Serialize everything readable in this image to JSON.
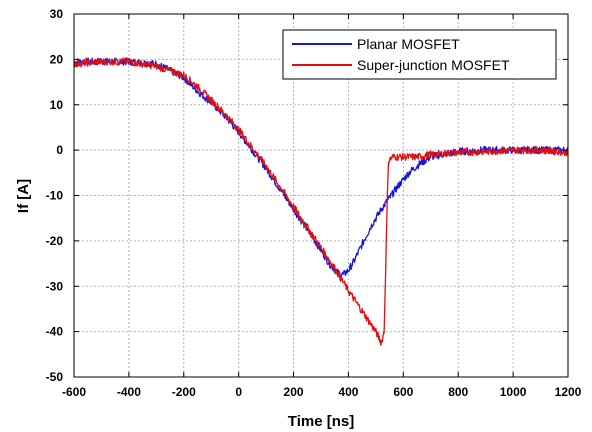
{
  "chart_data": {
    "type": "line",
    "xlabel": "Time [ns]",
    "ylabel": "If [A]",
    "xlim": [
      -600,
      1200
    ],
    "ylim": [
      -50,
      30
    ],
    "xticks": [
      -600,
      -400,
      -200,
      0,
      200,
      400,
      600,
      800,
      1000,
      1200
    ],
    "yticks": [
      -50,
      -40,
      -30,
      -20,
      -10,
      0,
      10,
      20,
      30
    ],
    "grid": true,
    "legend": "top-right",
    "series": [
      {
        "name": "Planar MOSFET",
        "color": "#1515e0",
        "x": [
          -600,
          -500,
          -400,
          -300,
          -200,
          -150,
          -100,
          -50,
          0,
          50,
          100,
          150,
          200,
          250,
          300,
          330,
          360,
          380,
          400,
          420,
          440,
          460,
          480,
          500,
          520,
          550,
          580,
          620,
          660,
          700,
          800,
          900,
          1000,
          1100,
          1200
        ],
        "y": [
          19.5,
          19.5,
          19.5,
          19,
          16,
          13,
          10.5,
          7.5,
          4,
          0,
          -4,
          -8.5,
          -13,
          -17.5,
          -22,
          -25,
          -27,
          -27.5,
          -26.5,
          -24.5,
          -22,
          -19.5,
          -17,
          -15,
          -13,
          -10.5,
          -8,
          -5,
          -3,
          -1.5,
          -0.3,
          0,
          0,
          0,
          0
        ]
      },
      {
        "name": "Super-junction MOSFET",
        "color": "#e01010",
        "x": [
          -600,
          -500,
          -400,
          -300,
          -200,
          -150,
          -100,
          -50,
          0,
          50,
          100,
          150,
          200,
          250,
          300,
          350,
          400,
          450,
          500,
          520,
          530,
          545,
          560,
          600,
          650,
          700,
          800,
          900,
          1000,
          1100,
          1200
        ],
        "y": [
          19,
          19.5,
          19.5,
          18.5,
          16.5,
          14,
          11,
          8,
          4.5,
          0.5,
          -3.5,
          -8,
          -12.5,
          -17,
          -21.5,
          -26,
          -31,
          -35.5,
          -40,
          -42.5,
          -40,
          -2.5,
          -1.5,
          -1.5,
          -1.5,
          -1,
          -0.5,
          -0.3,
          0,
          0,
          -0.5
        ]
      }
    ]
  }
}
